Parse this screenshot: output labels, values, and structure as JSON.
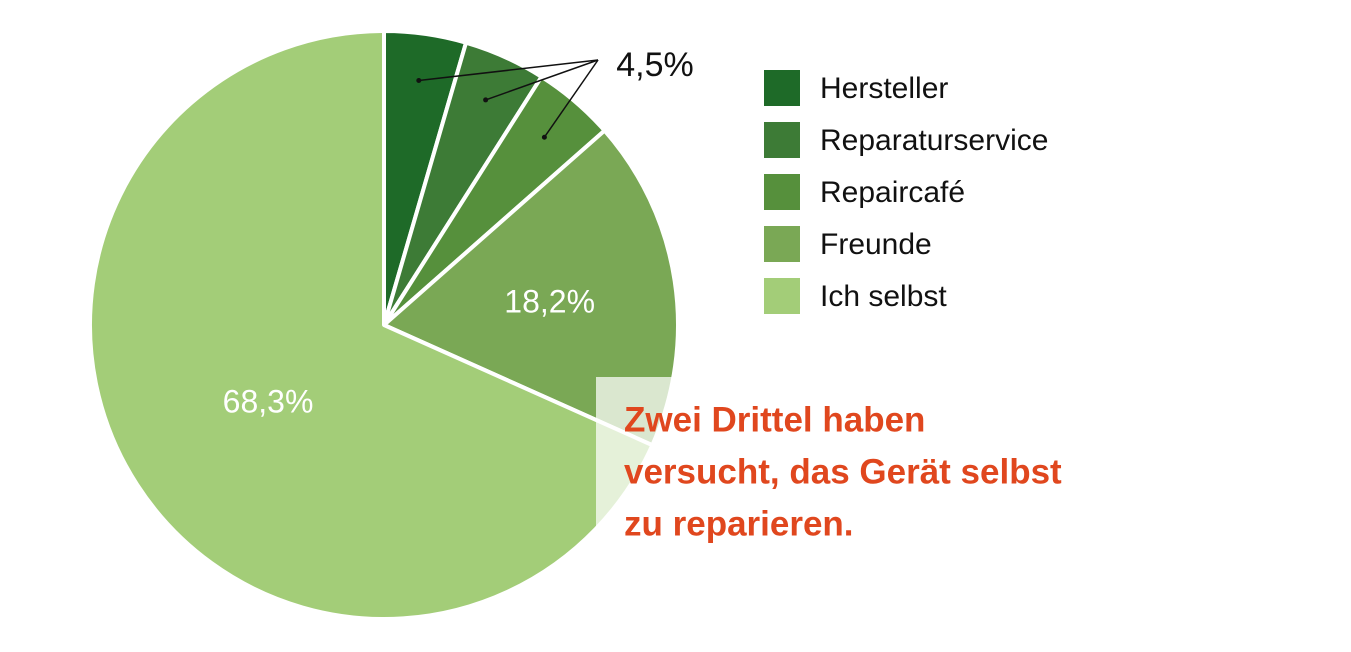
{
  "chart_data": {
    "type": "pie",
    "categories": [
      "Hersteller",
      "Reparaturservice",
      "Repaircafé",
      "Freunde",
      "Ich selbst"
    ],
    "values": [
      4.5,
      4.5,
      4.5,
      18.2,
      68.3
    ],
    "value_labels": [
      "4,5%",
      null,
      null,
      "18,2%",
      "68,3%"
    ],
    "colors": [
      "#1e6a28",
      "#3d7b36",
      "#56903c",
      "#7aa855",
      "#a3cd78"
    ],
    "annotation": [
      "Zwei Drittel haben",
      "versucht, das Gerät selbst",
      "zu reparieren."
    ],
    "annotation_color": "#e0471e"
  }
}
